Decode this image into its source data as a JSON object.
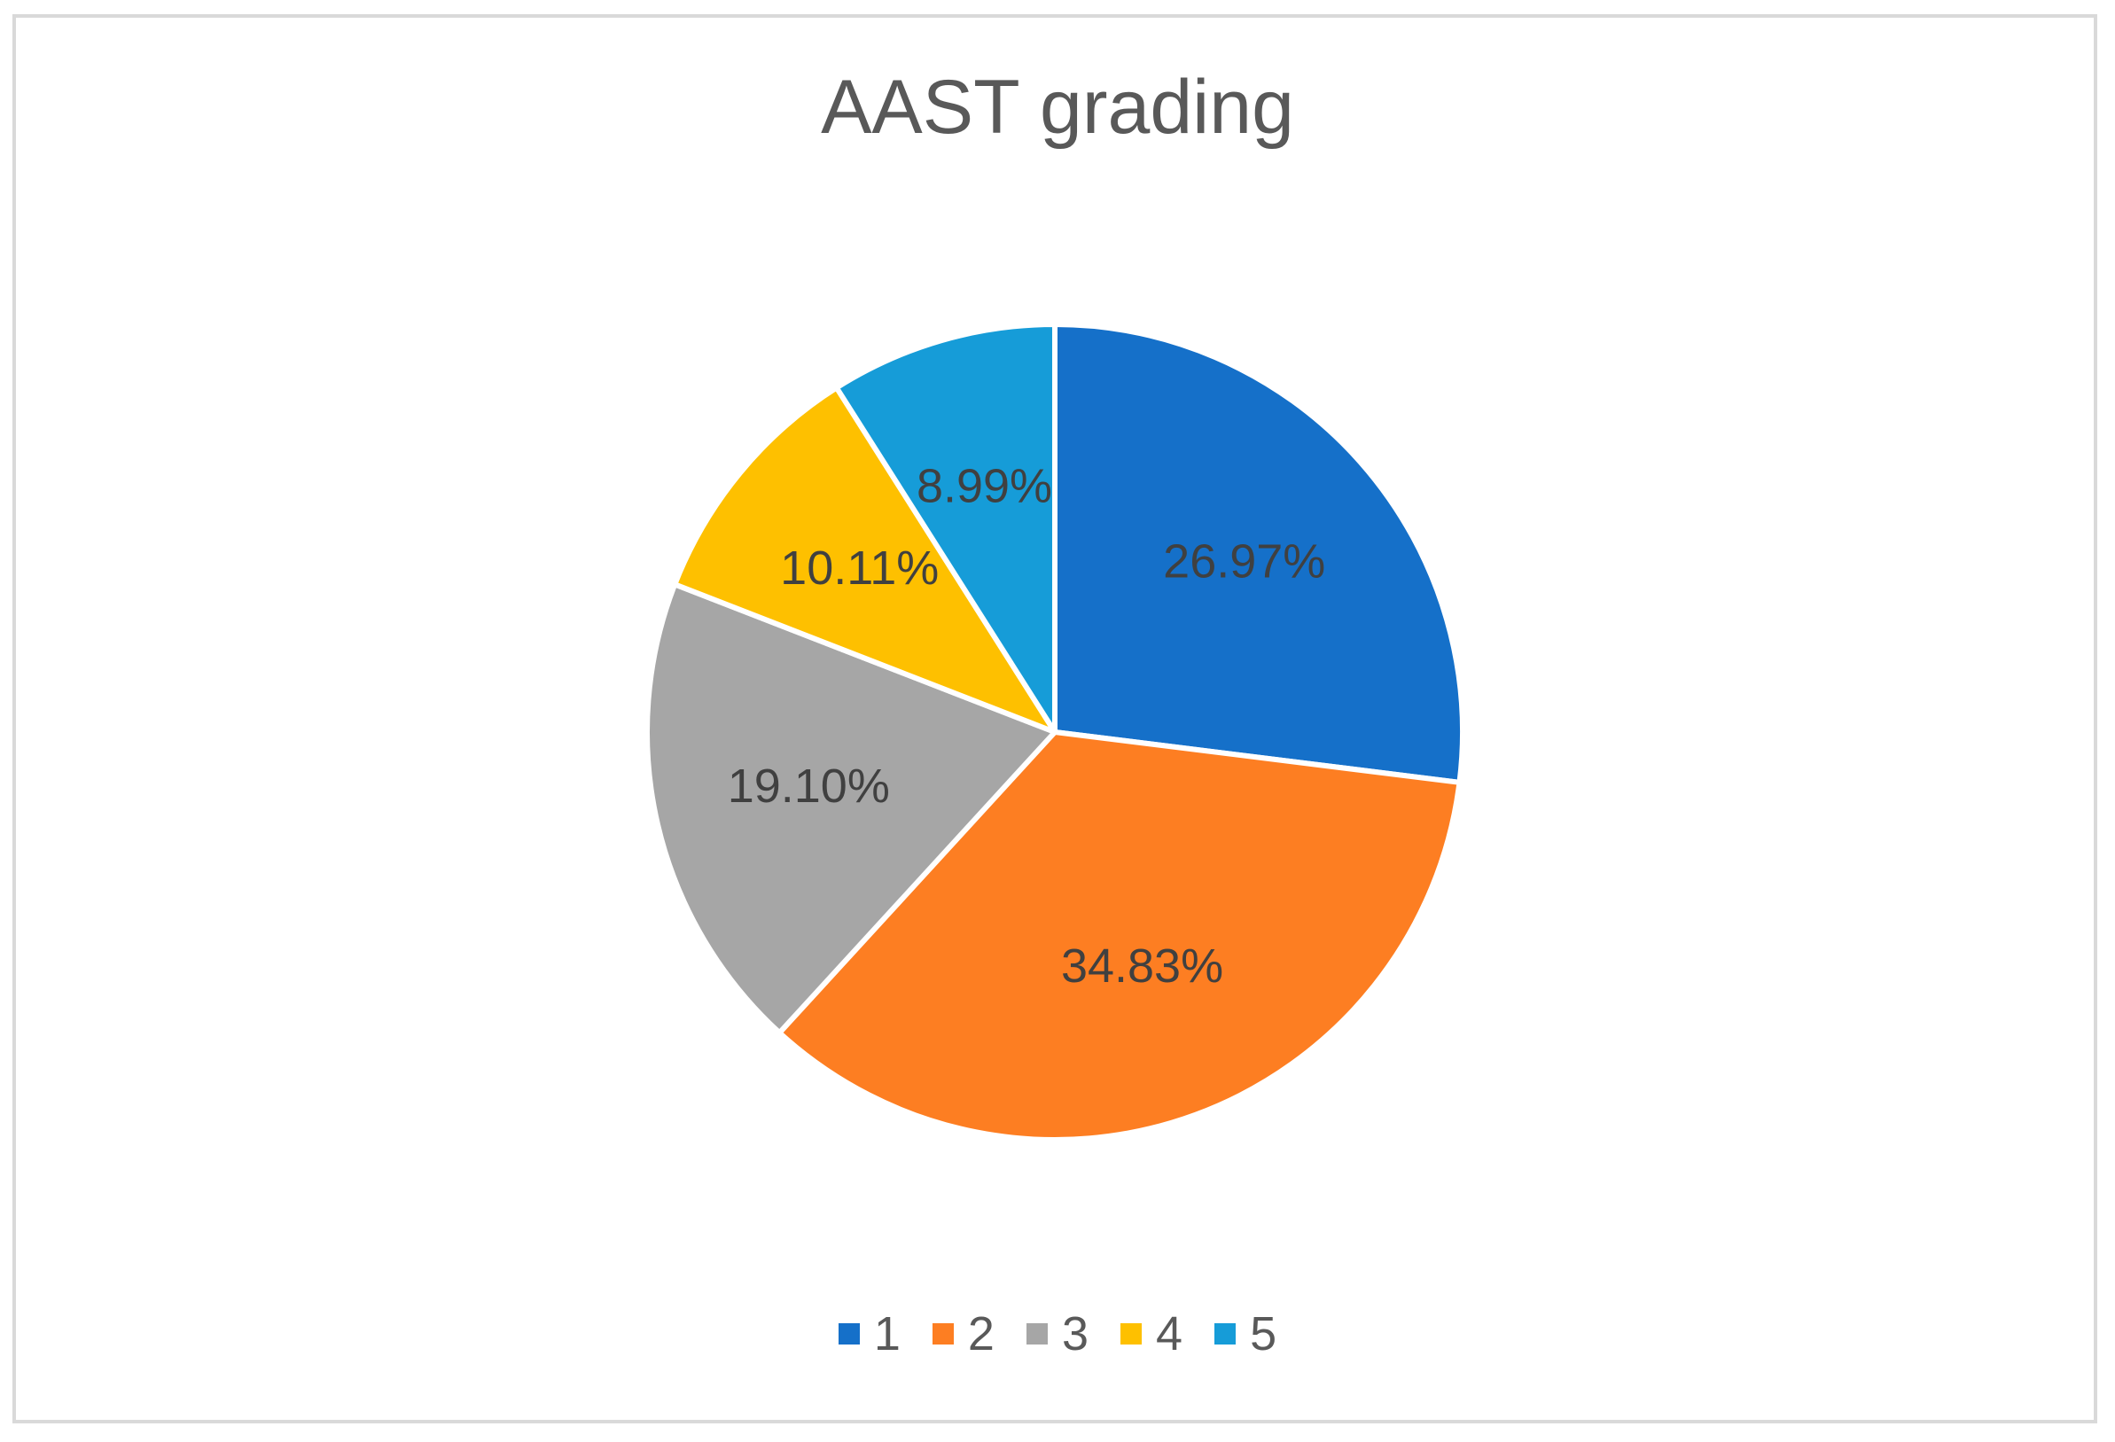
{
  "chart_data": {
    "type": "pie",
    "title": "AAST grading",
    "categories": [
      "1",
      "2",
      "3",
      "4",
      "5"
    ],
    "values": [
      26.97,
      34.83,
      19.1,
      10.11,
      8.99
    ],
    "labels": [
      "26.97%",
      "34.83%",
      "19.10%",
      "10.11%",
      "8.99%"
    ],
    "colors": [
      "#1570c9",
      "#fd7e22",
      "#a6a6a6",
      "#fec000",
      "#169cd8"
    ],
    "start_angle_deg": 0,
    "direction": "clockwise",
    "legend_position": "bottom",
    "legend": [
      "1",
      "2",
      "3",
      "4",
      "5"
    ]
  }
}
